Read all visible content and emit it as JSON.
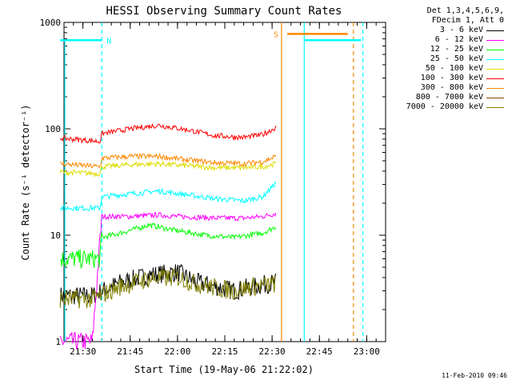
{
  "chart_data": {
    "type": "line",
    "title": "HESSI Observing Summary Count Rates",
    "xlabel": "Start Time (19-May-06 21:22:02)",
    "ylabel": "Count Rate (s⁻¹ detector⁻¹)",
    "yscale": "log",
    "ylim": [
      1,
      1000
    ],
    "xlim_minutes": [
      21.4,
      23.1
    ],
    "xtick_labels": [
      "21:30",
      "21:45",
      "22:00",
      "22:15",
      "22:30",
      "22:45",
      "23:00"
    ],
    "xtick_values": [
      21.5,
      21.75,
      22.0,
      22.25,
      22.5,
      22.75,
      23.0
    ],
    "ytick_labels": [
      "1",
      "10",
      "100",
      "1000"
    ],
    "ytick_values": [
      1,
      10,
      100,
      1000
    ],
    "legend_header": [
      "Det 1,3,4,5,6,9,",
      "FDecim 1, Att 0"
    ],
    "legend_position": "right",
    "series": [
      {
        "name": "3 - 6 keV",
        "color": "#000000",
        "x": [
          21.38,
          21.55,
          21.7,
          21.85,
          22.0,
          22.1,
          22.2,
          22.3,
          22.4,
          22.52
        ],
        "y": [
          2.7,
          2.7,
          3.6,
          4.2,
          4.5,
          3.6,
          3.3,
          3.0,
          3.3,
          3.6
        ]
      },
      {
        "name": "6 - 12 keV",
        "color": "#ff00ff",
        "x": [
          21.38,
          21.55,
          21.6,
          21.75,
          21.9,
          22.0,
          22.2,
          22.35,
          22.45,
          22.52
        ],
        "y": [
          1.0,
          1.0,
          15.0,
          15.0,
          15.5,
          15.0,
          14.5,
          14.5,
          15.0,
          16.0
        ]
      },
      {
        "name": "12 - 25 keV",
        "color": "#00ff00",
        "x": [
          21.38,
          21.59,
          21.6,
          21.7,
          21.85,
          22.0,
          22.15,
          22.3,
          22.45,
          22.52
        ],
        "y": [
          6.0,
          6.0,
          9.5,
          10.5,
          12.5,
          11.0,
          10.0,
          9.5,
          10.5,
          12.0
        ]
      },
      {
        "name": "25 - 50 keV",
        "color": "#00ffff",
        "x": [
          21.38,
          21.59,
          21.6,
          21.75,
          21.9,
          22.05,
          22.2,
          22.35,
          22.45,
          22.52
        ],
        "y": [
          18.0,
          18.0,
          23.0,
          24.5,
          26.0,
          24.0,
          22.0,
          21.0,
          23.0,
          31.0
        ]
      },
      {
        "name": "50 - 100 keV",
        "color": "#dddd00",
        "x": [
          21.38,
          21.59,
          21.6,
          21.75,
          21.9,
          22.05,
          22.2,
          22.35,
          22.45,
          22.52
        ],
        "y": [
          39.0,
          38.0,
          44.0,
          46.0,
          47.0,
          45.0,
          43.0,
          43.0,
          44.0,
          47.0
        ]
      },
      {
        "name": "100 - 300 keV",
        "color": "#ff0000",
        "x": [
          21.38,
          21.59,
          21.6,
          21.75,
          21.9,
          22.05,
          22.2,
          22.35,
          22.45,
          22.52
        ],
        "y": [
          82.0,
          76.0,
          90.0,
          100.0,
          108.0,
          98.0,
          86.0,
          83.0,
          88.0,
          103.0
        ]
      },
      {
        "name": "300 - 800 keV",
        "color": "#ff8800",
        "x": [
          21.38,
          21.59,
          21.6,
          21.75,
          21.9,
          22.05,
          22.2,
          22.35,
          22.45,
          22.52
        ],
        "y": [
          47.0,
          44.0,
          53.0,
          55.0,
          55.0,
          51.0,
          48.0,
          47.0,
          49.0,
          55.0
        ]
      },
      {
        "name": "800 - 7000 keV",
        "color": "#8b4500",
        "x": [
          21.38,
          21.52
        ],
        "y": [
          2.0,
          2.0
        ]
      },
      {
        "name": "7000 - 20000 keV",
        "color": "#808000",
        "x": [
          21.38,
          21.55,
          21.7,
          21.85,
          22.0,
          22.1,
          22.2,
          22.3,
          22.4,
          22.52
        ],
        "y": [
          2.5,
          2.5,
          3.3,
          3.9,
          4.0,
          3.5,
          3.2,
          3.0,
          3.3,
          3.5
        ]
      }
    ],
    "annotations": [
      {
        "text": "N",
        "color": "#00ffff"
      },
      {
        "text": "S",
        "color": "#ff8800"
      }
    ],
    "intervals": [
      {
        "color": "#00ffff",
        "x1": 21.38,
        "x2": 21.6,
        "y": 680
      },
      {
        "color": "#ff8800",
        "x1": 22.58,
        "x2": 22.9,
        "y": 780
      },
      {
        "color": "#00ffff",
        "x1": 22.67,
        "x2": 22.97,
        "y": 680
      }
    ],
    "vlines": [
      {
        "x": 21.6,
        "color": "#00ffff",
        "style": "dashed"
      },
      {
        "x": 22.55,
        "color": "#ff8800",
        "style": "solid"
      },
      {
        "x": 22.67,
        "color": "#00ffff",
        "style": "solid"
      },
      {
        "x": 22.93,
        "color": "#ff8800",
        "style": "dashed"
      },
      {
        "x": 22.98,
        "color": "#00ffff",
        "style": "dashed"
      }
    ],
    "grid": false
  },
  "stamp": "11-Feb-2010 09:46"
}
